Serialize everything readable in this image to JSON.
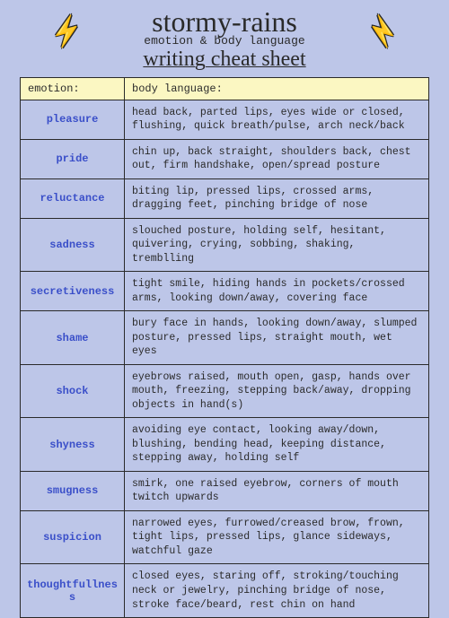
{
  "header": {
    "title_main": "stormy-rains",
    "title_sub": "emotion & body language",
    "title_script": "writing cheat sheet"
  },
  "table": {
    "col1_header": "emotion:",
    "col2_header": "body language:",
    "rows": [
      {
        "emotion": "pleasure",
        "body": "head back, parted lips, eyes wide or closed, flushing, quick breath/pulse, arch neck/back"
      },
      {
        "emotion": "pride",
        "body": "chin up, back straight, shoulders back, chest out, firm handshake, open/spread posture"
      },
      {
        "emotion": "reluctance",
        "body": "biting lip, pressed lips, crossed arms, dragging feet, pinching bridge of nose"
      },
      {
        "emotion": "sadness",
        "body": "slouched posture, holding self, hesitant, quivering, crying, sobbing, shaking, tremblling"
      },
      {
        "emotion": "secretiveness",
        "body": "tight smile, hiding hands in pockets/crossed arms, looking down/away, covering face"
      },
      {
        "emotion": "shame",
        "body": "bury face in hands, looking down/away, slumped posture, pressed lips, straight mouth, wet eyes"
      },
      {
        "emotion": "shock",
        "body": "eyebrows raised, mouth open, gasp, hands over mouth, freezing, stepping back/away, dropping objects in hand(s)"
      },
      {
        "emotion": "shyness",
        "body": "avoiding eye contact, looking away/down, blushing, bending head, keeping distance, stepping away, holding self"
      },
      {
        "emotion": "smugness",
        "body": "smirk, one raised eyebrow, corners of mouth twitch upwards"
      },
      {
        "emotion": "suspicion",
        "body": "narrowed eyes, furrowed/creased brow, frown, tight lips, pressed lips, glance sideways, watchful gaze"
      },
      {
        "emotion": "thoughtfullness",
        "body": "closed eyes, staring off, stroking/touching neck or jewelry, pinching bridge of nose, stroke face/beard, rest chin on hand"
      }
    ]
  },
  "colors": {
    "background": "#bdc6e8",
    "header_row_bg": "#fbf7c2",
    "border": "#2a2a2a",
    "emotion_text": "#3a4fc9",
    "body_text": "#2a2a2a",
    "bolt_fill": "#f9f29a"
  }
}
